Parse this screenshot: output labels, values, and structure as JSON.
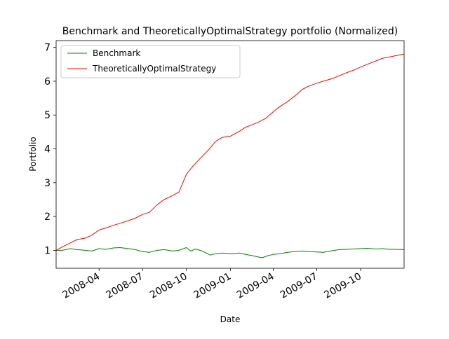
{
  "chart_data": {
    "type": "line",
    "title": "Benchmark and TheoreticallyOptimalStrategy portfolio (Normalized)",
    "xlabel": "Date",
    "ylabel": "Portfolio",
    "xlim": [
      "2008-01-02",
      "2009-12-31"
    ],
    "ylim": [
      0.47,
      7.2
    ],
    "x_ticks": [
      "2008-04",
      "2008-07",
      "2008-10",
      "2009-01",
      "2009-04",
      "2009-07",
      "2009-10"
    ],
    "y_ticks": [
      1,
      2,
      3,
      4,
      5,
      6,
      7
    ],
    "grid": false,
    "legend": {
      "position": "upper-left"
    },
    "series": [
      {
        "name": "Benchmark",
        "color": "#008000",
        "points": [
          [
            "2008-01-02",
            1.0
          ],
          [
            "2008-01-15",
            1.0
          ],
          [
            "2008-02-01",
            1.05
          ],
          [
            "2008-02-15",
            1.02
          ],
          [
            "2008-03-03",
            1.0
          ],
          [
            "2008-03-17",
            0.98
          ],
          [
            "2008-04-01",
            1.05
          ],
          [
            "2008-04-15",
            1.03
          ],
          [
            "2008-05-01",
            1.07
          ],
          [
            "2008-05-15",
            1.08
          ],
          [
            "2008-06-02",
            1.05
          ],
          [
            "2008-06-16",
            1.02
          ],
          [
            "2008-07-01",
            0.96
          ],
          [
            "2008-07-15",
            0.94
          ],
          [
            "2008-08-01",
            1.0
          ],
          [
            "2008-08-15",
            1.02
          ],
          [
            "2008-09-02",
            0.98
          ],
          [
            "2008-09-15",
            1.0
          ],
          [
            "2008-10-01",
            1.08
          ],
          [
            "2008-10-10",
            0.98
          ],
          [
            "2008-10-20",
            1.04
          ],
          [
            "2008-11-03",
            0.98
          ],
          [
            "2008-11-20",
            0.86
          ],
          [
            "2008-12-01",
            0.9
          ],
          [
            "2008-12-15",
            0.92
          ],
          [
            "2009-01-02",
            0.9
          ],
          [
            "2009-01-20",
            0.92
          ],
          [
            "2009-02-02",
            0.88
          ],
          [
            "2009-02-17",
            0.84
          ],
          [
            "2009-03-02",
            0.8
          ],
          [
            "2009-03-09",
            0.78
          ],
          [
            "2009-03-20",
            0.84
          ],
          [
            "2009-04-01",
            0.88
          ],
          [
            "2009-04-15",
            0.9
          ],
          [
            "2009-05-01",
            0.94
          ],
          [
            "2009-05-15",
            0.96
          ],
          [
            "2009-06-01",
            0.98
          ],
          [
            "2009-06-15",
            0.96
          ],
          [
            "2009-07-01",
            0.95
          ],
          [
            "2009-07-15",
            0.94
          ],
          [
            "2009-08-03",
            0.99
          ],
          [
            "2009-08-17",
            1.02
          ],
          [
            "2009-09-01",
            1.03
          ],
          [
            "2009-09-15",
            1.04
          ],
          [
            "2009-10-01",
            1.05
          ],
          [
            "2009-10-15",
            1.06
          ],
          [
            "2009-11-02",
            1.04
          ],
          [
            "2009-11-16",
            1.05
          ],
          [
            "2009-12-01",
            1.03
          ],
          [
            "2009-12-15",
            1.03
          ],
          [
            "2009-12-31",
            1.02
          ]
        ]
      },
      {
        "name": "TheoreticallyOptimalStrategy",
        "color": "#ff0000",
        "points": [
          [
            "2008-01-02",
            1.0
          ],
          [
            "2008-01-15",
            1.1
          ],
          [
            "2008-02-01",
            1.22
          ],
          [
            "2008-02-15",
            1.32
          ],
          [
            "2008-03-03",
            1.36
          ],
          [
            "2008-03-17",
            1.45
          ],
          [
            "2008-04-01",
            1.6
          ],
          [
            "2008-04-15",
            1.66
          ],
          [
            "2008-05-01",
            1.74
          ],
          [
            "2008-05-15",
            1.8
          ],
          [
            "2008-06-02",
            1.88
          ],
          [
            "2008-06-16",
            1.95
          ],
          [
            "2008-07-01",
            2.06
          ],
          [
            "2008-07-15",
            2.12
          ],
          [
            "2008-08-01",
            2.35
          ],
          [
            "2008-08-15",
            2.5
          ],
          [
            "2008-09-02",
            2.62
          ],
          [
            "2008-09-15",
            2.72
          ],
          [
            "2008-10-01",
            3.25
          ],
          [
            "2008-10-15",
            3.5
          ],
          [
            "2008-11-03",
            3.78
          ],
          [
            "2008-11-17",
            3.98
          ],
          [
            "2008-12-01",
            4.22
          ],
          [
            "2008-12-15",
            4.34
          ],
          [
            "2009-01-02",
            4.38
          ],
          [
            "2009-01-20",
            4.52
          ],
          [
            "2009-02-02",
            4.64
          ],
          [
            "2009-02-17",
            4.72
          ],
          [
            "2009-03-02",
            4.8
          ],
          [
            "2009-03-16",
            4.9
          ],
          [
            "2009-04-01",
            5.1
          ],
          [
            "2009-04-15",
            5.25
          ],
          [
            "2009-05-01",
            5.4
          ],
          [
            "2009-05-15",
            5.55
          ],
          [
            "2009-06-01",
            5.76
          ],
          [
            "2009-06-15",
            5.86
          ],
          [
            "2009-07-01",
            5.94
          ],
          [
            "2009-07-15",
            6.0
          ],
          [
            "2009-08-03",
            6.08
          ],
          [
            "2009-08-17",
            6.16
          ],
          [
            "2009-09-01",
            6.25
          ],
          [
            "2009-09-15",
            6.32
          ],
          [
            "2009-10-01",
            6.42
          ],
          [
            "2009-10-15",
            6.5
          ],
          [
            "2009-11-02",
            6.6
          ],
          [
            "2009-11-16",
            6.68
          ],
          [
            "2009-12-01",
            6.72
          ],
          [
            "2009-12-15",
            6.76
          ],
          [
            "2009-12-31",
            6.8
          ]
        ]
      }
    ]
  }
}
